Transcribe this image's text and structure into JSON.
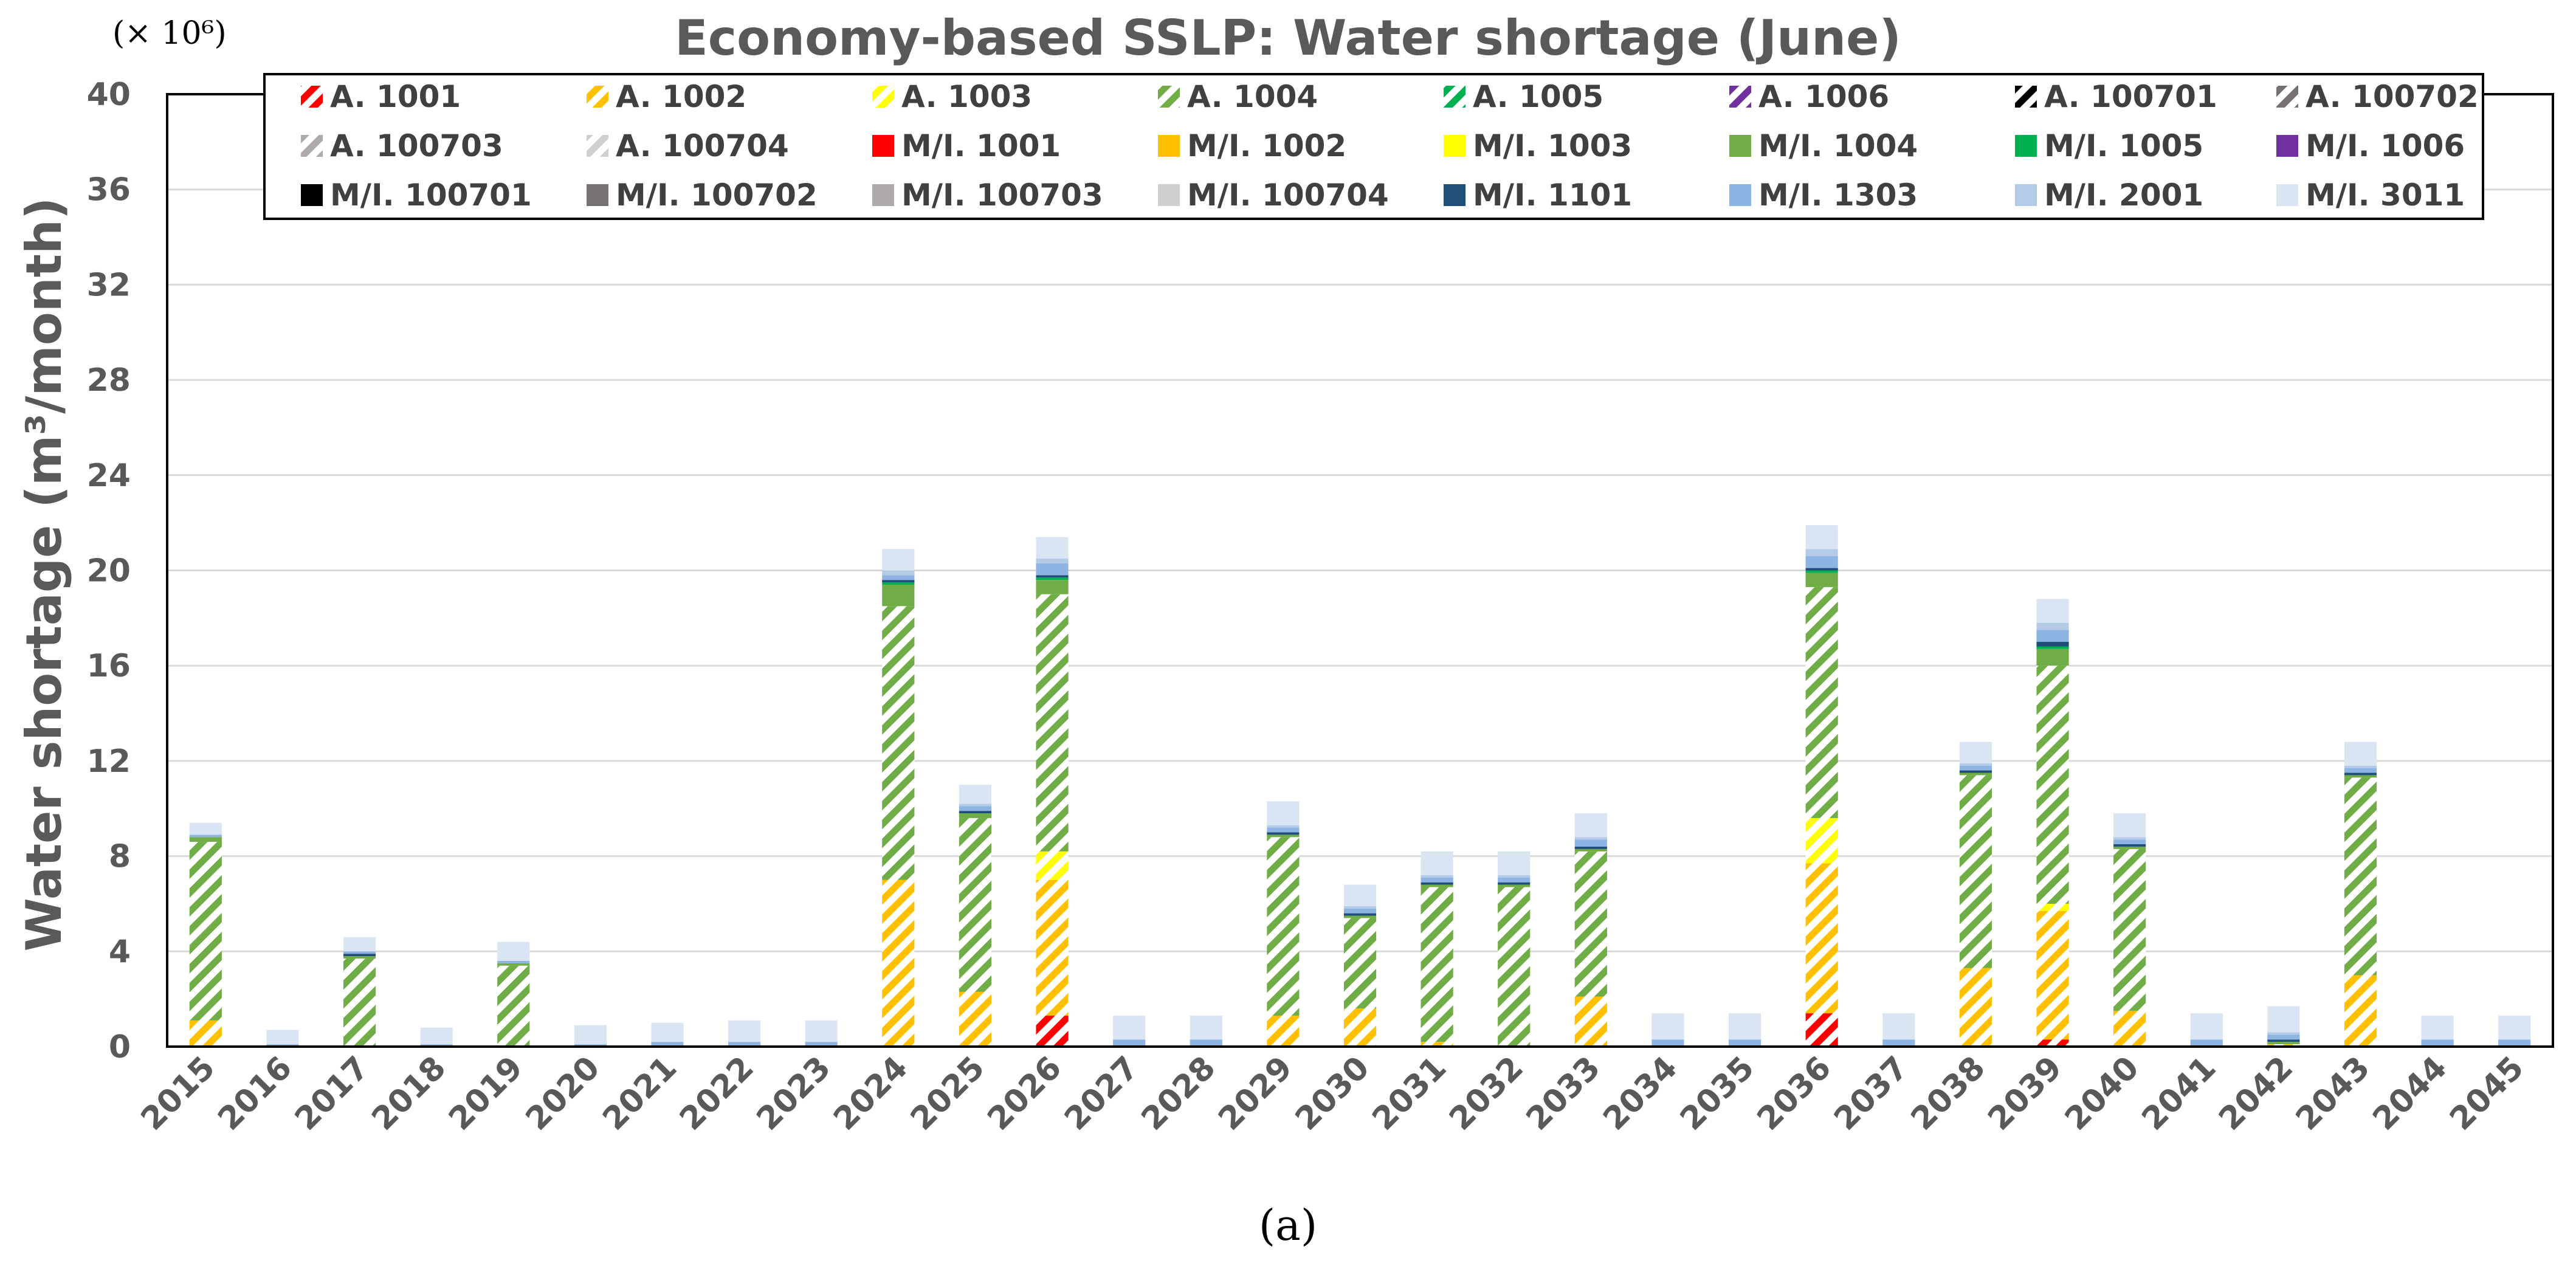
{
  "chart_data": {
    "type": "bar",
    "stacked": true,
    "title": "Economy-based SSLP: Water shortage (June)",
    "ylabel": "Water shortage (m³/month)",
    "xlabel": "",
    "multiplier_label": "(× 10⁶)",
    "caption": "(a)",
    "ylim": [
      0,
      40
    ],
    "yticks": [
      "0",
      "4",
      "8",
      "12",
      "16",
      "20",
      "24",
      "28",
      "32",
      "36",
      "40"
    ],
    "categories": [
      "2015",
      "2016",
      "2017",
      "2018",
      "2019",
      "2020",
      "2021",
      "2022",
      "2023",
      "2024",
      "2025",
      "2026",
      "2027",
      "2028",
      "2029",
      "2030",
      "2031",
      "2032",
      "2033",
      "2034",
      "2035",
      "2036",
      "2037",
      "2038",
      "2039",
      "2040",
      "2041",
      "2042",
      "2043",
      "2044",
      "2045"
    ],
    "legend_position": "top",
    "series": [
      {
        "name": "A. 1001",
        "color": "#ff0000",
        "hatched": true,
        "values": [
          0,
          0,
          0,
          0,
          0,
          0,
          0,
          0,
          0,
          0,
          0,
          1.3,
          0,
          0,
          0,
          0,
          0,
          0,
          0,
          0,
          0,
          1.4,
          0,
          0,
          0.3,
          0,
          0,
          0,
          0,
          0,
          0
        ]
      },
      {
        "name": "A. 1002",
        "color": "#ffc000",
        "hatched": true,
        "values": [
          1.1,
          0,
          0,
          0,
          0,
          0,
          0,
          0,
          0,
          7.0,
          2.3,
          5.7,
          0,
          0,
          1.3,
          1.6,
          0.2,
          0,
          2.1,
          0,
          0,
          6.3,
          0,
          3.3,
          5.4,
          1.5,
          0,
          0.1,
          3.0,
          0,
          0
        ]
      },
      {
        "name": "A. 1003",
        "color": "#ffff00",
        "hatched": true,
        "values": [
          0,
          0,
          0,
          0,
          0,
          0,
          0,
          0,
          0,
          0,
          0,
          1.2,
          0,
          0,
          0,
          0,
          0,
          0,
          0,
          0,
          0,
          1.9,
          0,
          0,
          0.3,
          0,
          0,
          0,
          0,
          0,
          0
        ]
      },
      {
        "name": "A. 1004",
        "color": "#70ad47",
        "hatched": true,
        "values": [
          7.5,
          0,
          3.7,
          0,
          3.4,
          0,
          0,
          0,
          0,
          11.5,
          7.3,
          10.8,
          0,
          0,
          7.5,
          3.8,
          6.5,
          6.7,
          6.1,
          0,
          0,
          9.7,
          0,
          8.1,
          10.0,
          6.8,
          0,
          0,
          8.3,
          0,
          0
        ]
      },
      {
        "name": "A. 1005",
        "color": "#00b050",
        "hatched": true,
        "values": [
          0,
          0,
          0,
          0,
          0,
          0,
          0,
          0,
          0,
          0,
          0,
          0,
          0,
          0,
          0,
          0,
          0,
          0,
          0,
          0,
          0,
          0,
          0,
          0,
          0,
          0,
          0,
          0,
          0,
          0,
          0
        ]
      },
      {
        "name": "A. 1006",
        "color": "#7030a0",
        "hatched": true,
        "values": [
          0,
          0,
          0,
          0,
          0,
          0,
          0,
          0,
          0,
          0,
          0,
          0,
          0,
          0,
          0,
          0,
          0,
          0,
          0,
          0,
          0,
          0,
          0,
          0,
          0,
          0,
          0,
          0,
          0,
          0,
          0
        ]
      },
      {
        "name": "A. 100701",
        "color": "#000000",
        "hatched": true,
        "values": [
          0,
          0,
          0,
          0,
          0,
          0,
          0,
          0,
          0,
          0,
          0,
          0,
          0,
          0,
          0,
          0,
          0,
          0,
          0,
          0,
          0,
          0,
          0,
          0,
          0,
          0,
          0,
          0,
          0,
          0,
          0
        ]
      },
      {
        "name": "A. 100702",
        "color": "#767171",
        "hatched": true,
        "values": [
          0,
          0,
          0,
          0,
          0,
          0,
          0,
          0,
          0,
          0,
          0,
          0,
          0,
          0,
          0,
          0,
          0,
          0,
          0,
          0,
          0,
          0,
          0,
          0,
          0,
          0,
          0,
          0,
          0,
          0,
          0
        ]
      },
      {
        "name": "A. 100703",
        "color": "#aeaaaa",
        "hatched": true,
        "values": [
          0,
          0,
          0,
          0,
          0,
          0,
          0,
          0,
          0,
          0,
          0,
          0,
          0,
          0,
          0,
          0,
          0,
          0,
          0,
          0,
          0,
          0,
          0,
          0,
          0,
          0,
          0,
          0,
          0,
          0,
          0
        ]
      },
      {
        "name": "A. 100704",
        "color": "#d0cece",
        "hatched": true,
        "values": [
          0,
          0,
          0,
          0,
          0,
          0,
          0,
          0,
          0,
          0,
          0,
          0,
          0,
          0,
          0,
          0,
          0,
          0,
          0,
          0,
          0,
          0,
          0,
          0,
          0,
          0,
          0,
          0,
          0,
          0,
          0
        ]
      },
      {
        "name": "M/I. 1001",
        "color": "#ff0000",
        "hatched": false,
        "values": [
          0,
          0,
          0,
          0,
          0,
          0,
          0,
          0,
          0,
          0,
          0,
          0,
          0,
          0,
          0,
          0,
          0,
          0,
          0,
          0,
          0,
          0,
          0,
          0,
          0,
          0,
          0,
          0,
          0,
          0,
          0
        ]
      },
      {
        "name": "M/I. 1002",
        "color": "#ffc000",
        "hatched": false,
        "values": [
          0,
          0,
          0,
          0,
          0,
          0,
          0,
          0,
          0,
          0,
          0,
          0,
          0,
          0,
          0,
          0,
          0,
          0,
          0,
          0,
          0,
          0,
          0,
          0,
          0,
          0,
          0,
          0,
          0,
          0,
          0
        ]
      },
      {
        "name": "M/I. 1003",
        "color": "#ffff00",
        "hatched": false,
        "values": [
          0,
          0,
          0,
          0,
          0,
          0,
          0,
          0,
          0,
          0,
          0,
          0,
          0,
          0,
          0,
          0,
          0,
          0,
          0,
          0,
          0,
          0,
          0,
          0,
          0,
          0,
          0,
          0,
          0,
          0,
          0
        ]
      },
      {
        "name": "M/I. 1004",
        "color": "#70ad47",
        "hatched": false,
        "values": [
          0.2,
          0,
          0.1,
          0,
          0.1,
          0,
          0,
          0,
          0,
          0.9,
          0.2,
          0.6,
          0,
          0,
          0.1,
          0.1,
          0.1,
          0.1,
          0.1,
          0,
          0,
          0.6,
          0,
          0.1,
          0.7,
          0.1,
          0,
          0.1,
          0.1,
          0,
          0
        ]
      },
      {
        "name": "M/I. 1005",
        "color": "#00b050",
        "hatched": false,
        "values": [
          0,
          0,
          0,
          0,
          0,
          0,
          0,
          0,
          0,
          0.1,
          0,
          0.1,
          0,
          0,
          0,
          0,
          0,
          0,
          0,
          0,
          0,
          0.1,
          0,
          0,
          0.1,
          0,
          0,
          0,
          0,
          0,
          0
        ]
      },
      {
        "name": "M/I. 1006",
        "color": "#7030a0",
        "hatched": false,
        "values": [
          0,
          0,
          0,
          0,
          0,
          0,
          0,
          0,
          0,
          0,
          0,
          0,
          0,
          0,
          0,
          0,
          0,
          0,
          0,
          0,
          0,
          0,
          0,
          0,
          0,
          0,
          0,
          0,
          0,
          0,
          0
        ]
      },
      {
        "name": "M/I. 100701",
        "color": "#000000",
        "hatched": false,
        "values": [
          0,
          0,
          0,
          0,
          0,
          0,
          0,
          0,
          0,
          0,
          0,
          0,
          0,
          0,
          0,
          0,
          0,
          0,
          0,
          0,
          0,
          0,
          0,
          0,
          0,
          0,
          0,
          0,
          0,
          0,
          0
        ]
      },
      {
        "name": "M/I. 100702",
        "color": "#767171",
        "hatched": false,
        "values": [
          0,
          0,
          0,
          0,
          0,
          0,
          0,
          0,
          0,
          0,
          0,
          0,
          0,
          0,
          0,
          0,
          0,
          0,
          0,
          0,
          0,
          0,
          0,
          0,
          0,
          0,
          0,
          0,
          0,
          0,
          0
        ]
      },
      {
        "name": "M/I. 100703",
        "color": "#aeaaaa",
        "hatched": false,
        "values": [
          0,
          0,
          0,
          0,
          0,
          0,
          0,
          0,
          0,
          0,
          0,
          0,
          0,
          0,
          0,
          0,
          0,
          0,
          0,
          0,
          0,
          0,
          0,
          0,
          0,
          0,
          0,
          0,
          0,
          0,
          0
        ]
      },
      {
        "name": "M/I. 100704",
        "color": "#d0cece",
        "hatched": false,
        "values": [
          0,
          0,
          0,
          0,
          0,
          0,
          0,
          0,
          0,
          0,
          0,
          0,
          0,
          0,
          0,
          0,
          0,
          0,
          0,
          0,
          0,
          0,
          0,
          0,
          0,
          0,
          0,
          0,
          0,
          0,
          0
        ]
      },
      {
        "name": "M/I. 1101",
        "color": "#1f4e79",
        "hatched": false,
        "values": [
          0,
          0,
          0.1,
          0,
          0,
          0,
          0,
          0,
          0,
          0.1,
          0.1,
          0.1,
          0,
          0,
          0.1,
          0.1,
          0.1,
          0.1,
          0.1,
          0,
          0,
          0.1,
          0,
          0.1,
          0.2,
          0.1,
          0,
          0.1,
          0.1,
          0,
          0
        ]
      },
      {
        "name": "M/I. 1303",
        "color": "#8eb4e3",
        "hatched": false,
        "values": [
          0.1,
          0.1,
          0.1,
          0.1,
          0.1,
          0.1,
          0.2,
          0.2,
          0.2,
          0.2,
          0.2,
          0.5,
          0.3,
          0.3,
          0.2,
          0.2,
          0.2,
          0.2,
          0.3,
          0.3,
          0.3,
          0.5,
          0.3,
          0.2,
          0.5,
          0.2,
          0.3,
          0.2,
          0.2,
          0.3,
          0.3
        ]
      },
      {
        "name": "M/I. 2001",
        "color": "#b4cbe8",
        "hatched": false,
        "values": [
          0,
          0,
          0,
          0,
          0,
          0,
          0,
          0,
          0,
          0.2,
          0.1,
          0.2,
          0,
          0,
          0.1,
          0.1,
          0.1,
          0.1,
          0.1,
          0,
          0,
          0.3,
          0,
          0.1,
          0.3,
          0.1,
          0,
          0.1,
          0.1,
          0,
          0
        ]
      },
      {
        "name": "M/I. 3011",
        "color": "#dae5f4",
        "hatched": false,
        "values": [
          0.5,
          0.6,
          0.6,
          0.7,
          0.8,
          0.8,
          0.8,
          0.9,
          0.9,
          0.9,
          0.8,
          0.9,
          1.0,
          1.0,
          1.0,
          0.9,
          1.0,
          1.0,
          1.0,
          1.1,
          1.1,
          1.0,
          1.1,
          0.9,
          1.0,
          1.0,
          1.1,
          1.1,
          1.0,
          1.0,
          1.0
        ]
      }
    ]
  }
}
